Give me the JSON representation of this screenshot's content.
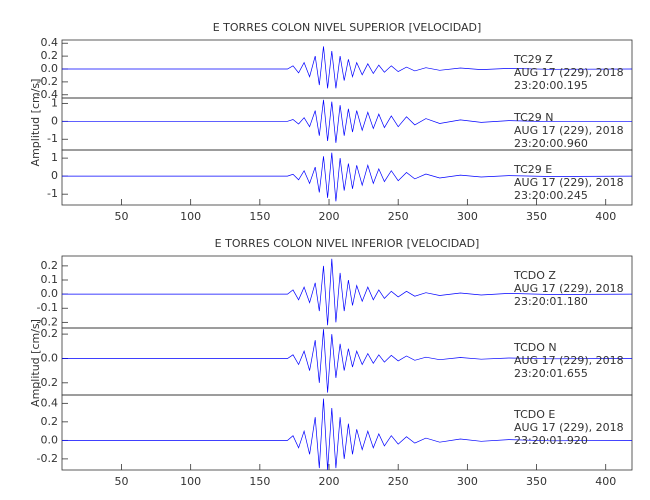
{
  "chart_data": [
    {
      "type": "line",
      "title": "E TORRES COLON NIVEL SUPERIOR [VELOCIDAD]",
      "y_label": "Amplitud [cm/s]",
      "xlim": [
        7,
        419
      ],
      "xticks": [
        50,
        100,
        150,
        200,
        250,
        300,
        350,
        400
      ],
      "x": [
        7,
        170,
        174,
        178,
        182,
        186,
        190,
        193,
        196,
        199,
        202,
        205,
        208,
        211,
        214,
        217,
        220,
        224,
        228,
        232,
        236,
        240,
        245,
        250,
        256,
        262,
        270,
        280,
        295,
        310,
        330,
        360,
        419
      ],
      "series": [
        {
          "name": "TC29  Z",
          "date": "AUG 17 (229), 2018",
          "time": "23:20:00.195",
          "color": "#0000ff",
          "ylim": [
            -0.45,
            0.45
          ],
          "yticks": [
            -0.4,
            -0.2,
            {
              "value": 0,
              "label": "0.0"
            },
            0.2,
            0.4
          ],
          "values": [
            0,
            0,
            0.05,
            -0.06,
            0.1,
            -0.12,
            0.2,
            -0.25,
            0.35,
            -0.3,
            0.28,
            -0.3,
            0.2,
            -0.18,
            0.15,
            -0.12,
            0.1,
            -0.09,
            0.08,
            -0.07,
            0.06,
            -0.05,
            0.05,
            -0.04,
            0.03,
            -0.03,
            0.02,
            -0.02,
            0.015,
            -0.01,
            0.01,
            -0.005,
            0
          ]
        },
        {
          "name": "TC29  N",
          "date": "AUG 17 (229), 2018",
          "time": "23:20:00.960",
          "color": "#0000ff",
          "ylim": [
            -1.6,
            1.3
          ],
          "yticks": [
            -1,
            0,
            1
          ],
          "values": [
            0,
            0,
            0.1,
            -0.15,
            0.2,
            -0.3,
            0.6,
            -0.8,
            1.2,
            -1.1,
            1.1,
            -1.2,
            0.9,
            -0.8,
            0.7,
            -0.6,
            0.6,
            -0.5,
            0.5,
            -0.4,
            0.4,
            -0.35,
            0.3,
            -0.3,
            0.25,
            -0.2,
            0.15,
            -0.12,
            0.08,
            -0.06,
            0.04,
            -0.02,
            0
          ]
        },
        {
          "name": "TC29  E",
          "date": "AUG 17 (229), 2018",
          "time": "23:20:00.245",
          "color": "#0000ff",
          "ylim": [
            -1.6,
            1.45
          ],
          "yticks": [
            -1,
            0,
            1
          ],
          "values": [
            0,
            0,
            0.1,
            -0.2,
            0.3,
            -0.4,
            0.5,
            -0.9,
            1.1,
            -1.2,
            1.3,
            -1.4,
            1.0,
            -0.8,
            0.7,
            -0.7,
            0.6,
            -0.5,
            0.6,
            -0.4,
            0.4,
            -0.3,
            0.3,
            -0.25,
            0.2,
            -0.15,
            0.12,
            -0.1,
            0.06,
            -0.05,
            0.03,
            -0.02,
            0
          ]
        }
      ]
    },
    {
      "type": "line",
      "title": "E TORRES COLON NIVEL INFERIOR [VELOCIDAD]",
      "y_label": "Amplitud [cm/s]",
      "xlim": [
        7,
        419
      ],
      "xticks": [
        50,
        100,
        150,
        200,
        250,
        300,
        350,
        400
      ],
      "x": [
        7,
        170,
        174,
        178,
        182,
        186,
        190,
        193,
        196,
        199,
        202,
        205,
        208,
        211,
        214,
        217,
        220,
        224,
        228,
        232,
        236,
        240,
        245,
        250,
        256,
        262,
        270,
        280,
        295,
        310,
        330,
        360,
        419
      ],
      "series": [
        {
          "name": "TCDO  Z",
          "date": "AUG 17 (229), 2018",
          "time": "23:20:01.180",
          "color": "#0000ff",
          "ylim": [
            -0.24,
            0.27
          ],
          "yticks": [
            -0.2,
            -0.1,
            {
              "value": 0,
              "label": "0.0"
            },
            0.1,
            0.2
          ],
          "values": [
            0,
            0,
            0.03,
            -0.04,
            0.05,
            -0.06,
            0.08,
            -0.12,
            0.2,
            -0.22,
            0.25,
            -0.2,
            0.15,
            -0.12,
            0.1,
            -0.08,
            0.06,
            -0.05,
            0.05,
            -0.04,
            0.03,
            -0.03,
            0.02,
            -0.02,
            0.02,
            -0.015,
            0.01,
            -0.01,
            0.008,
            -0.006,
            0.005,
            -0.003,
            0
          ]
        },
        {
          "name": "TCDO  N",
          "date": "AUG 17 (229), 2018",
          "time": "23:20:01.655",
          "color": "#0000ff",
          "ylim": [
            -0.3,
            0.25
          ],
          "yticks": [
            -0.2,
            {
              "value": 0,
              "label": "0.0"
            },
            0.2
          ],
          "values": [
            0,
            0,
            0.03,
            -0.05,
            0.06,
            -0.1,
            0.15,
            -0.2,
            0.24,
            -0.28,
            0.2,
            -0.16,
            0.12,
            -0.1,
            0.08,
            -0.07,
            0.06,
            -0.05,
            0.04,
            -0.04,
            0.03,
            -0.03,
            0.025,
            -0.02,
            0.02,
            -0.015,
            0.01,
            -0.01,
            0.008,
            -0.006,
            0.004,
            -0.003,
            0
          ]
        },
        {
          "name": "TCDO  E",
          "date": "AUG 17 (229), 2018",
          "time": "23:20:01.920",
          "color": "#0000ff",
          "ylim": [
            -0.32,
            0.49
          ],
          "yticks": [
            -0.2,
            {
              "value": 0,
              "label": "0.0"
            },
            0.2,
            0.4
          ],
          "values": [
            0,
            0,
            0.05,
            -0.08,
            0.1,
            -0.15,
            0.25,
            -0.3,
            0.45,
            -0.32,
            0.35,
            -0.3,
            0.25,
            -0.2,
            0.18,
            -0.15,
            0.12,
            -0.1,
            0.1,
            -0.08,
            0.07,
            -0.06,
            0.05,
            -0.04,
            0.04,
            -0.03,
            0.025,
            -0.02,
            0.015,
            -0.01,
            0.008,
            -0.005,
            0
          ]
        }
      ]
    }
  ]
}
